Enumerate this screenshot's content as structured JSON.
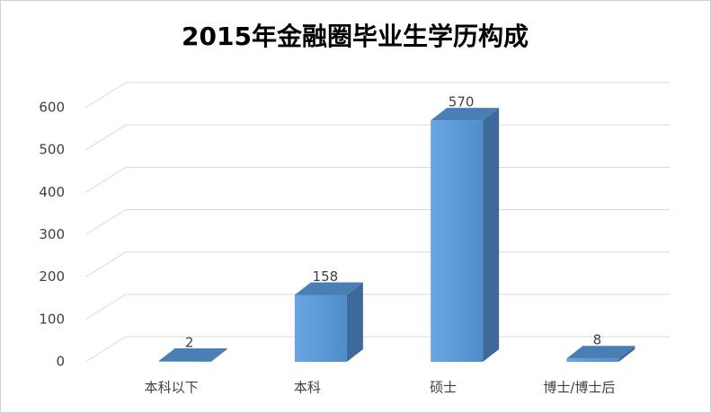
{
  "chart_data": {
    "type": "bar3d",
    "title": "2015年金融圈毕业生学历构成",
    "categories": [
      "本科以下",
      "本科",
      "硕士",
      "博士/博士后"
    ],
    "values": [
      2,
      158,
      570,
      8
    ],
    "color": "#5b9bd5",
    "ylim": [
      0,
      600
    ],
    "yticks": [
      0,
      100,
      200,
      300,
      400,
      500,
      600
    ],
    "grid": true
  }
}
